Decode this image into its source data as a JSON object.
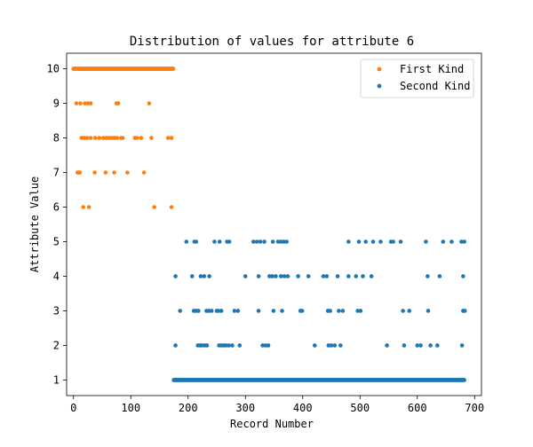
{
  "chart_data": {
    "type": "scatter",
    "title": "Distribution of values for attribute 6",
    "xlabel": "Record Number",
    "ylabel": "Attribute Value",
    "xlim": [
      -12,
      712
    ],
    "ylim": [
      0.55,
      10.45
    ],
    "x_ticks": [
      0,
      100,
      200,
      300,
      400,
      500,
      600,
      700
    ],
    "y_ticks": [
      1,
      2,
      3,
      4,
      5,
      6,
      7,
      8,
      9,
      10
    ],
    "grid": false,
    "legend_position": "top-right",
    "series": [
      {
        "name": "First Kind",
        "color": "#ff7f0e",
        "points": [
          [
            0,
            10
          ],
          [
            2,
            10
          ],
          [
            4,
            10
          ],
          [
            6,
            10
          ],
          [
            8,
            10
          ],
          [
            10,
            10
          ],
          [
            12,
            10
          ],
          [
            14,
            10
          ],
          [
            16,
            10
          ],
          [
            18,
            10
          ],
          [
            20,
            10
          ],
          [
            22,
            10
          ],
          [
            24,
            10
          ],
          [
            26,
            10
          ],
          [
            28,
            10
          ],
          [
            30,
            10
          ],
          [
            32,
            10
          ],
          [
            34,
            10
          ],
          [
            36,
            10
          ],
          [
            38,
            10
          ],
          [
            40,
            10
          ],
          [
            42,
            10
          ],
          [
            44,
            10
          ],
          [
            46,
            10
          ],
          [
            48,
            10
          ],
          [
            50,
            10
          ],
          [
            52,
            10
          ],
          [
            54,
            10
          ],
          [
            56,
            10
          ],
          [
            58,
            10
          ],
          [
            60,
            10
          ],
          [
            62,
            10
          ],
          [
            64,
            10
          ],
          [
            66,
            10
          ],
          [
            68,
            10
          ],
          [
            70,
            10
          ],
          [
            72,
            10
          ],
          [
            74,
            10
          ],
          [
            76,
            10
          ],
          [
            78,
            10
          ],
          [
            80,
            10
          ],
          [
            82,
            10
          ],
          [
            84,
            10
          ],
          [
            86,
            10
          ],
          [
            88,
            10
          ],
          [
            90,
            10
          ],
          [
            92,
            10
          ],
          [
            94,
            10
          ],
          [
            96,
            10
          ],
          [
            98,
            10
          ],
          [
            100,
            10
          ],
          [
            102,
            10
          ],
          [
            104,
            10
          ],
          [
            106,
            10
          ],
          [
            108,
            10
          ],
          [
            110,
            10
          ],
          [
            112,
            10
          ],
          [
            114,
            10
          ],
          [
            116,
            10
          ],
          [
            118,
            10
          ],
          [
            120,
            10
          ],
          [
            122,
            10
          ],
          [
            124,
            10
          ],
          [
            126,
            10
          ],
          [
            128,
            10
          ],
          [
            130,
            10
          ],
          [
            132,
            10
          ],
          [
            134,
            10
          ],
          [
            136,
            10
          ],
          [
            138,
            10
          ],
          [
            140,
            10
          ],
          [
            142,
            10
          ],
          [
            144,
            10
          ],
          [
            146,
            10
          ],
          [
            148,
            10
          ],
          [
            150,
            10
          ],
          [
            152,
            10
          ],
          [
            154,
            10
          ],
          [
            156,
            10
          ],
          [
            158,
            10
          ],
          [
            160,
            10
          ],
          [
            162,
            10
          ],
          [
            164,
            10
          ],
          [
            166,
            10
          ],
          [
            168,
            10
          ],
          [
            170,
            10
          ],
          [
            172,
            10
          ],
          [
            174,
            10
          ],
          [
            5,
            9
          ],
          [
            12,
            9
          ],
          [
            20,
            9
          ],
          [
            25,
            9
          ],
          [
            30,
            9
          ],
          [
            75,
            9
          ],
          [
            78,
            9
          ],
          [
            132,
            9
          ],
          [
            14,
            8
          ],
          [
            17,
            8
          ],
          [
            20,
            8
          ],
          [
            24,
            8
          ],
          [
            30,
            8
          ],
          [
            38,
            8
          ],
          [
            45,
            8
          ],
          [
            52,
            8
          ],
          [
            57,
            8
          ],
          [
            60,
            8
          ],
          [
            64,
            8
          ],
          [
            68,
            8
          ],
          [
            72,
            8
          ],
          [
            76,
            8
          ],
          [
            83,
            8
          ],
          [
            86,
            8
          ],
          [
            107,
            8
          ],
          [
            111,
            8
          ],
          [
            118,
            8
          ],
          [
            136,
            8
          ],
          [
            165,
            8
          ],
          [
            171,
            8
          ],
          [
            7,
            7
          ],
          [
            9,
            7
          ],
          [
            11,
            7
          ],
          [
            37,
            7
          ],
          [
            56,
            7
          ],
          [
            71,
            7
          ],
          [
            94,
            7
          ],
          [
            123,
            7
          ],
          [
            17,
            6
          ],
          [
            27,
            6
          ],
          [
            141,
            6
          ],
          [
            171,
            6
          ]
        ]
      },
      {
        "name": "Second Kind",
        "color": "#1f77b4",
        "points": [
          [
            197,
            5
          ],
          [
            211,
            5
          ],
          [
            214,
            5
          ],
          [
            246,
            5
          ],
          [
            255,
            5
          ],
          [
            268,
            5
          ],
          [
            272,
            5
          ],
          [
            314,
            5
          ],
          [
            320,
            5
          ],
          [
            326,
            5
          ],
          [
            333,
            5
          ],
          [
            348,
            5
          ],
          [
            357,
            5
          ],
          [
            362,
            5
          ],
          [
            367,
            5
          ],
          [
            372,
            5
          ],
          [
            480,
            5
          ],
          [
            498,
            5
          ],
          [
            510,
            5
          ],
          [
            523,
            5
          ],
          [
            536,
            5
          ],
          [
            554,
            5
          ],
          [
            558,
            5
          ],
          [
            571,
            5
          ],
          [
            615,
            5
          ],
          [
            645,
            5
          ],
          [
            660,
            5
          ],
          [
            677,
            5
          ],
          [
            682,
            5
          ],
          [
            178,
            4
          ],
          [
            207,
            4
          ],
          [
            222,
            4
          ],
          [
            228,
            4
          ],
          [
            237,
            4
          ],
          [
            300,
            4
          ],
          [
            323,
            4
          ],
          [
            342,
            4
          ],
          [
            347,
            4
          ],
          [
            353,
            4
          ],
          [
            362,
            4
          ],
          [
            368,
            4
          ],
          [
            374,
            4
          ],
          [
            392,
            4
          ],
          [
            410,
            4
          ],
          [
            436,
            4
          ],
          [
            442,
            4
          ],
          [
            461,
            4
          ],
          [
            480,
            4
          ],
          [
            493,
            4
          ],
          [
            505,
            4
          ],
          [
            520,
            4
          ],
          [
            618,
            4
          ],
          [
            639,
            4
          ],
          [
            680,
            4
          ],
          [
            186,
            3
          ],
          [
            210,
            3
          ],
          [
            214,
            3
          ],
          [
            218,
            3
          ],
          [
            232,
            3
          ],
          [
            236,
            3
          ],
          [
            241,
            3
          ],
          [
            250,
            3
          ],
          [
            253,
            3
          ],
          [
            258,
            3
          ],
          [
            281,
            3
          ],
          [
            287,
            3
          ],
          [
            323,
            3
          ],
          [
            349,
            3
          ],
          [
            364,
            3
          ],
          [
            396,
            3
          ],
          [
            399,
            3
          ],
          [
            444,
            3
          ],
          [
            448,
            3
          ],
          [
            463,
            3
          ],
          [
            470,
            3
          ],
          [
            496,
            3
          ],
          [
            501,
            3
          ],
          [
            575,
            3
          ],
          [
            586,
            3
          ],
          [
            619,
            3
          ],
          [
            680,
            3
          ],
          [
            683,
            3
          ],
          [
            178,
            2
          ],
          [
            217,
            2
          ],
          [
            221,
            2
          ],
          [
            224,
            2
          ],
          [
            229,
            2
          ],
          [
            233,
            2
          ],
          [
            254,
            2
          ],
          [
            258,
            2
          ],
          [
            262,
            2
          ],
          [
            266,
            2
          ],
          [
            271,
            2
          ],
          [
            277,
            2
          ],
          [
            290,
            2
          ],
          [
            330,
            2
          ],
          [
            335,
            2
          ],
          [
            340,
            2
          ],
          [
            421,
            2
          ],
          [
            445,
            2
          ],
          [
            450,
            2
          ],
          [
            456,
            2
          ],
          [
            466,
            2
          ],
          [
            547,
            2
          ],
          [
            577,
            2
          ],
          [
            600,
            2
          ],
          [
            606,
            2
          ],
          [
            623,
            2
          ],
          [
            635,
            2
          ],
          [
            678,
            2
          ]
        ]
      }
    ],
    "dense_bands": [
      {
        "series": "First Kind",
        "x_start": 0,
        "x_end": 174,
        "y": 10
      },
      {
        "series": "Second Kind",
        "x_start": 175,
        "x_end": 682,
        "y": 1
      }
    ]
  }
}
